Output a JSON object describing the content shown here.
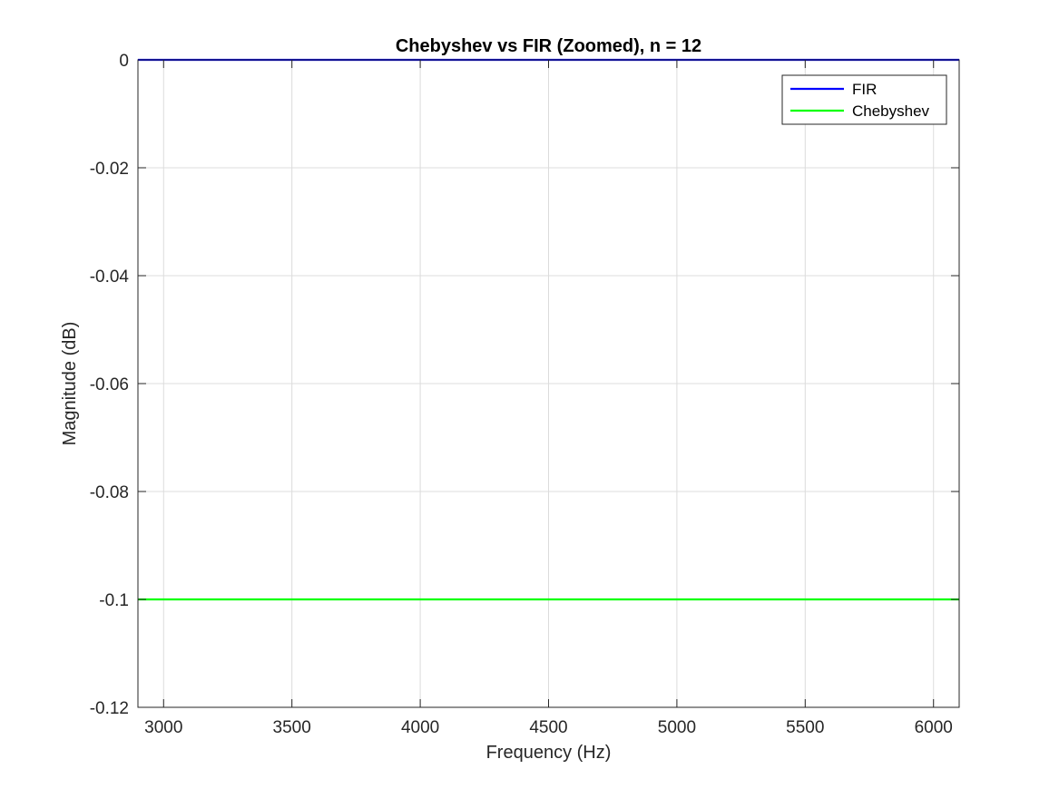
{
  "chart_data": {
    "type": "line",
    "title": "Chebyshev vs FIR (Zoomed), n = 12",
    "xlabel": "Frequency (Hz)",
    "ylabel": "Magnitude (dB)",
    "xlim": [
      2900,
      6100
    ],
    "ylim": [
      -0.12,
      0
    ],
    "xticks": [
      3000,
      3500,
      4000,
      4500,
      5000,
      5500,
      6000
    ],
    "xtick_labels": [
      "3000",
      "3500",
      "4000",
      "4500",
      "5000",
      "5500",
      "6000"
    ],
    "yticks": [
      0,
      -0.02,
      -0.04,
      -0.06,
      -0.08,
      -0.1,
      -0.12
    ],
    "ytick_labels": [
      "0",
      "-0.02",
      "-0.04",
      "-0.06",
      "-0.08",
      "-0.1",
      "-0.12"
    ],
    "grid": true,
    "legend_position": "top-right",
    "series": [
      {
        "name": "FIR",
        "color": "#0000ff",
        "x": [
          2900,
          6100
        ],
        "y": [
          0,
          0
        ]
      },
      {
        "name": "Chebyshev",
        "color": "#00ff00",
        "x": [
          2900,
          6100
        ],
        "y": [
          -0.1,
          -0.1
        ]
      }
    ]
  }
}
